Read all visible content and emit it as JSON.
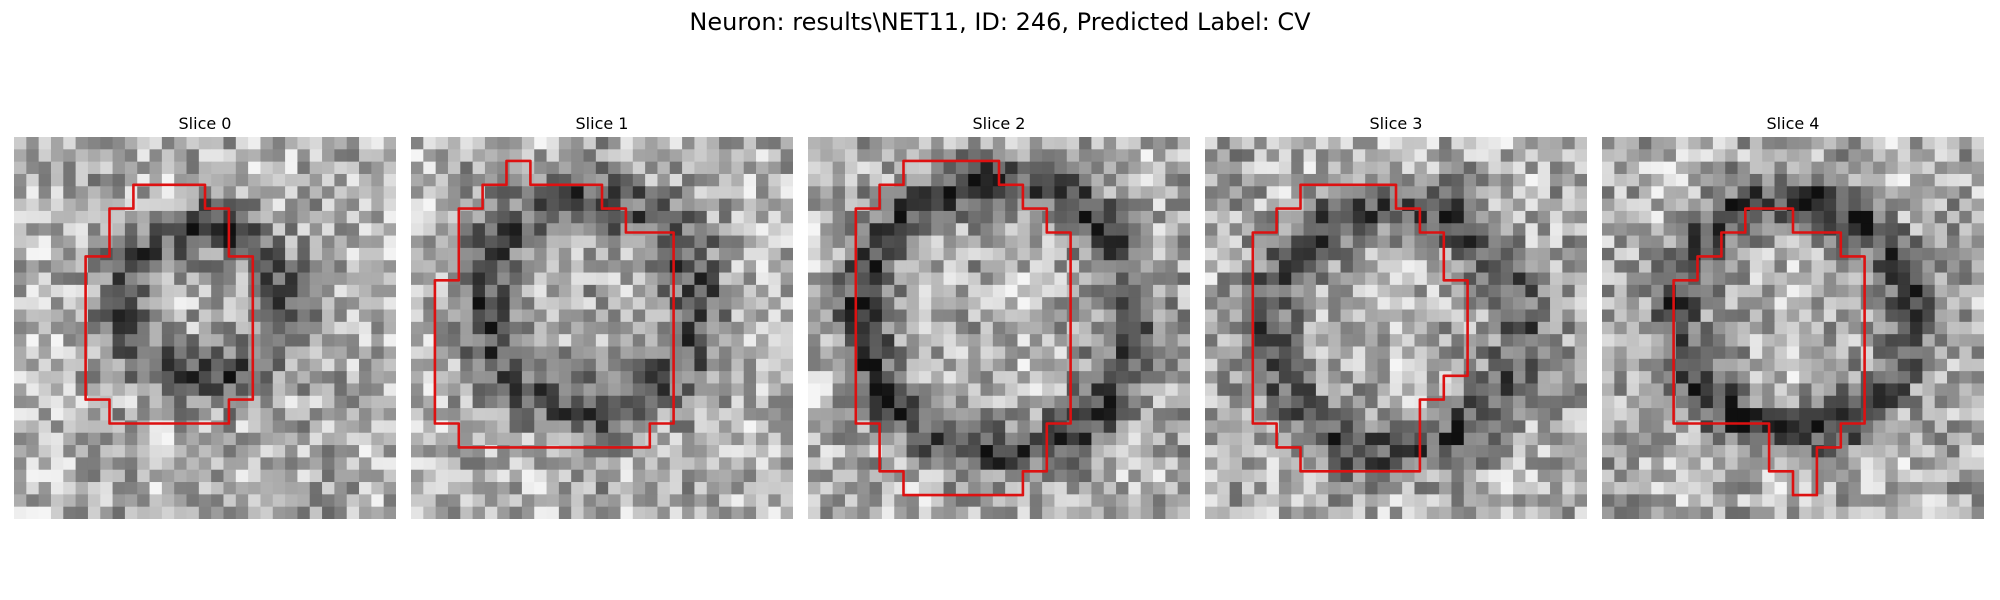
{
  "figure": {
    "title": "Neuron: results\\NET11, ID: 246, Predicted Label: CV",
    "outline_color": "#dd1111"
  },
  "slices": [
    {
      "label": "Slice 0",
      "outline": [
        [
          6,
          2
        ],
        [
          8,
          2
        ],
        [
          8,
          3
        ],
        [
          9,
          3
        ],
        [
          9,
          5
        ],
        [
          10,
          5
        ],
        [
          10,
          11
        ],
        [
          9,
          11
        ],
        [
          9,
          12
        ],
        [
          4,
          12
        ],
        [
          4,
          11
        ],
        [
          3,
          11
        ],
        [
          3,
          5
        ],
        [
          4,
          5
        ],
        [
          4,
          3
        ],
        [
          5,
          3
        ],
        [
          5,
          2
        ]
      ]
    },
    {
      "label": "Slice 1",
      "outline": [
        [
          5,
          2
        ],
        [
          8,
          2
        ],
        [
          8,
          3
        ],
        [
          9,
          3
        ],
        [
          9,
          4
        ],
        [
          11,
          4
        ],
        [
          11,
          12
        ],
        [
          10,
          12
        ],
        [
          10,
          13
        ],
        [
          2,
          13
        ],
        [
          2,
          12
        ],
        [
          1,
          12
        ],
        [
          1,
          6
        ],
        [
          2,
          6
        ],
        [
          2,
          3
        ],
        [
          3,
          3
        ],
        [
          3,
          2
        ],
        [
          4,
          2
        ],
        [
          4,
          1
        ],
        [
          5,
          1
        ]
      ]
    },
    {
      "label": "Slice 2",
      "outline": [
        [
          5,
          1
        ],
        [
          8,
          1
        ],
        [
          8,
          2
        ],
        [
          9,
          2
        ],
        [
          9,
          3
        ],
        [
          10,
          3
        ],
        [
          10,
          4
        ],
        [
          11,
          4
        ],
        [
          11,
          12
        ],
        [
          10,
          12
        ],
        [
          10,
          14
        ],
        [
          9,
          14
        ],
        [
          9,
          15
        ],
        [
          4,
          15
        ],
        [
          4,
          14
        ],
        [
          3,
          14
        ],
        [
          3,
          12
        ],
        [
          2,
          12
        ],
        [
          2,
          3
        ],
        [
          3,
          3
        ],
        [
          3,
          2
        ],
        [
          4,
          2
        ],
        [
          4,
          1
        ]
      ]
    },
    {
      "label": "Slice 3",
      "outline": [
        [
          5,
          2
        ],
        [
          8,
          2
        ],
        [
          8,
          3
        ],
        [
          9,
          3
        ],
        [
          9,
          4
        ],
        [
          10,
          4
        ],
        [
          10,
          6
        ],
        [
          11,
          6
        ],
        [
          11,
          10
        ],
        [
          10,
          10
        ],
        [
          10,
          11
        ],
        [
          9,
          11
        ],
        [
          9,
          14
        ],
        [
          4,
          14
        ],
        [
          4,
          13
        ],
        [
          3,
          13
        ],
        [
          3,
          12
        ],
        [
          2,
          12
        ],
        [
          2,
          4
        ],
        [
          3,
          4
        ],
        [
          3,
          3
        ],
        [
          4,
          3
        ],
        [
          4,
          2
        ]
      ]
    },
    {
      "label": "Slice 4",
      "outline": [
        [
          6,
          3
        ],
        [
          8,
          3
        ],
        [
          8,
          4
        ],
        [
          10,
          4
        ],
        [
          10,
          5
        ],
        [
          11,
          5
        ],
        [
          11,
          12
        ],
        [
          10,
          12
        ],
        [
          10,
          13
        ],
        [
          9,
          13
        ],
        [
          9,
          15
        ],
        [
          8,
          15
        ],
        [
          8,
          14
        ],
        [
          7,
          14
        ],
        [
          7,
          12
        ],
        [
          3,
          12
        ],
        [
          3,
          6
        ],
        [
          4,
          6
        ],
        [
          4,
          5
        ],
        [
          5,
          5
        ],
        [
          5,
          4
        ],
        [
          6,
          4
        ]
      ]
    }
  ]
}
